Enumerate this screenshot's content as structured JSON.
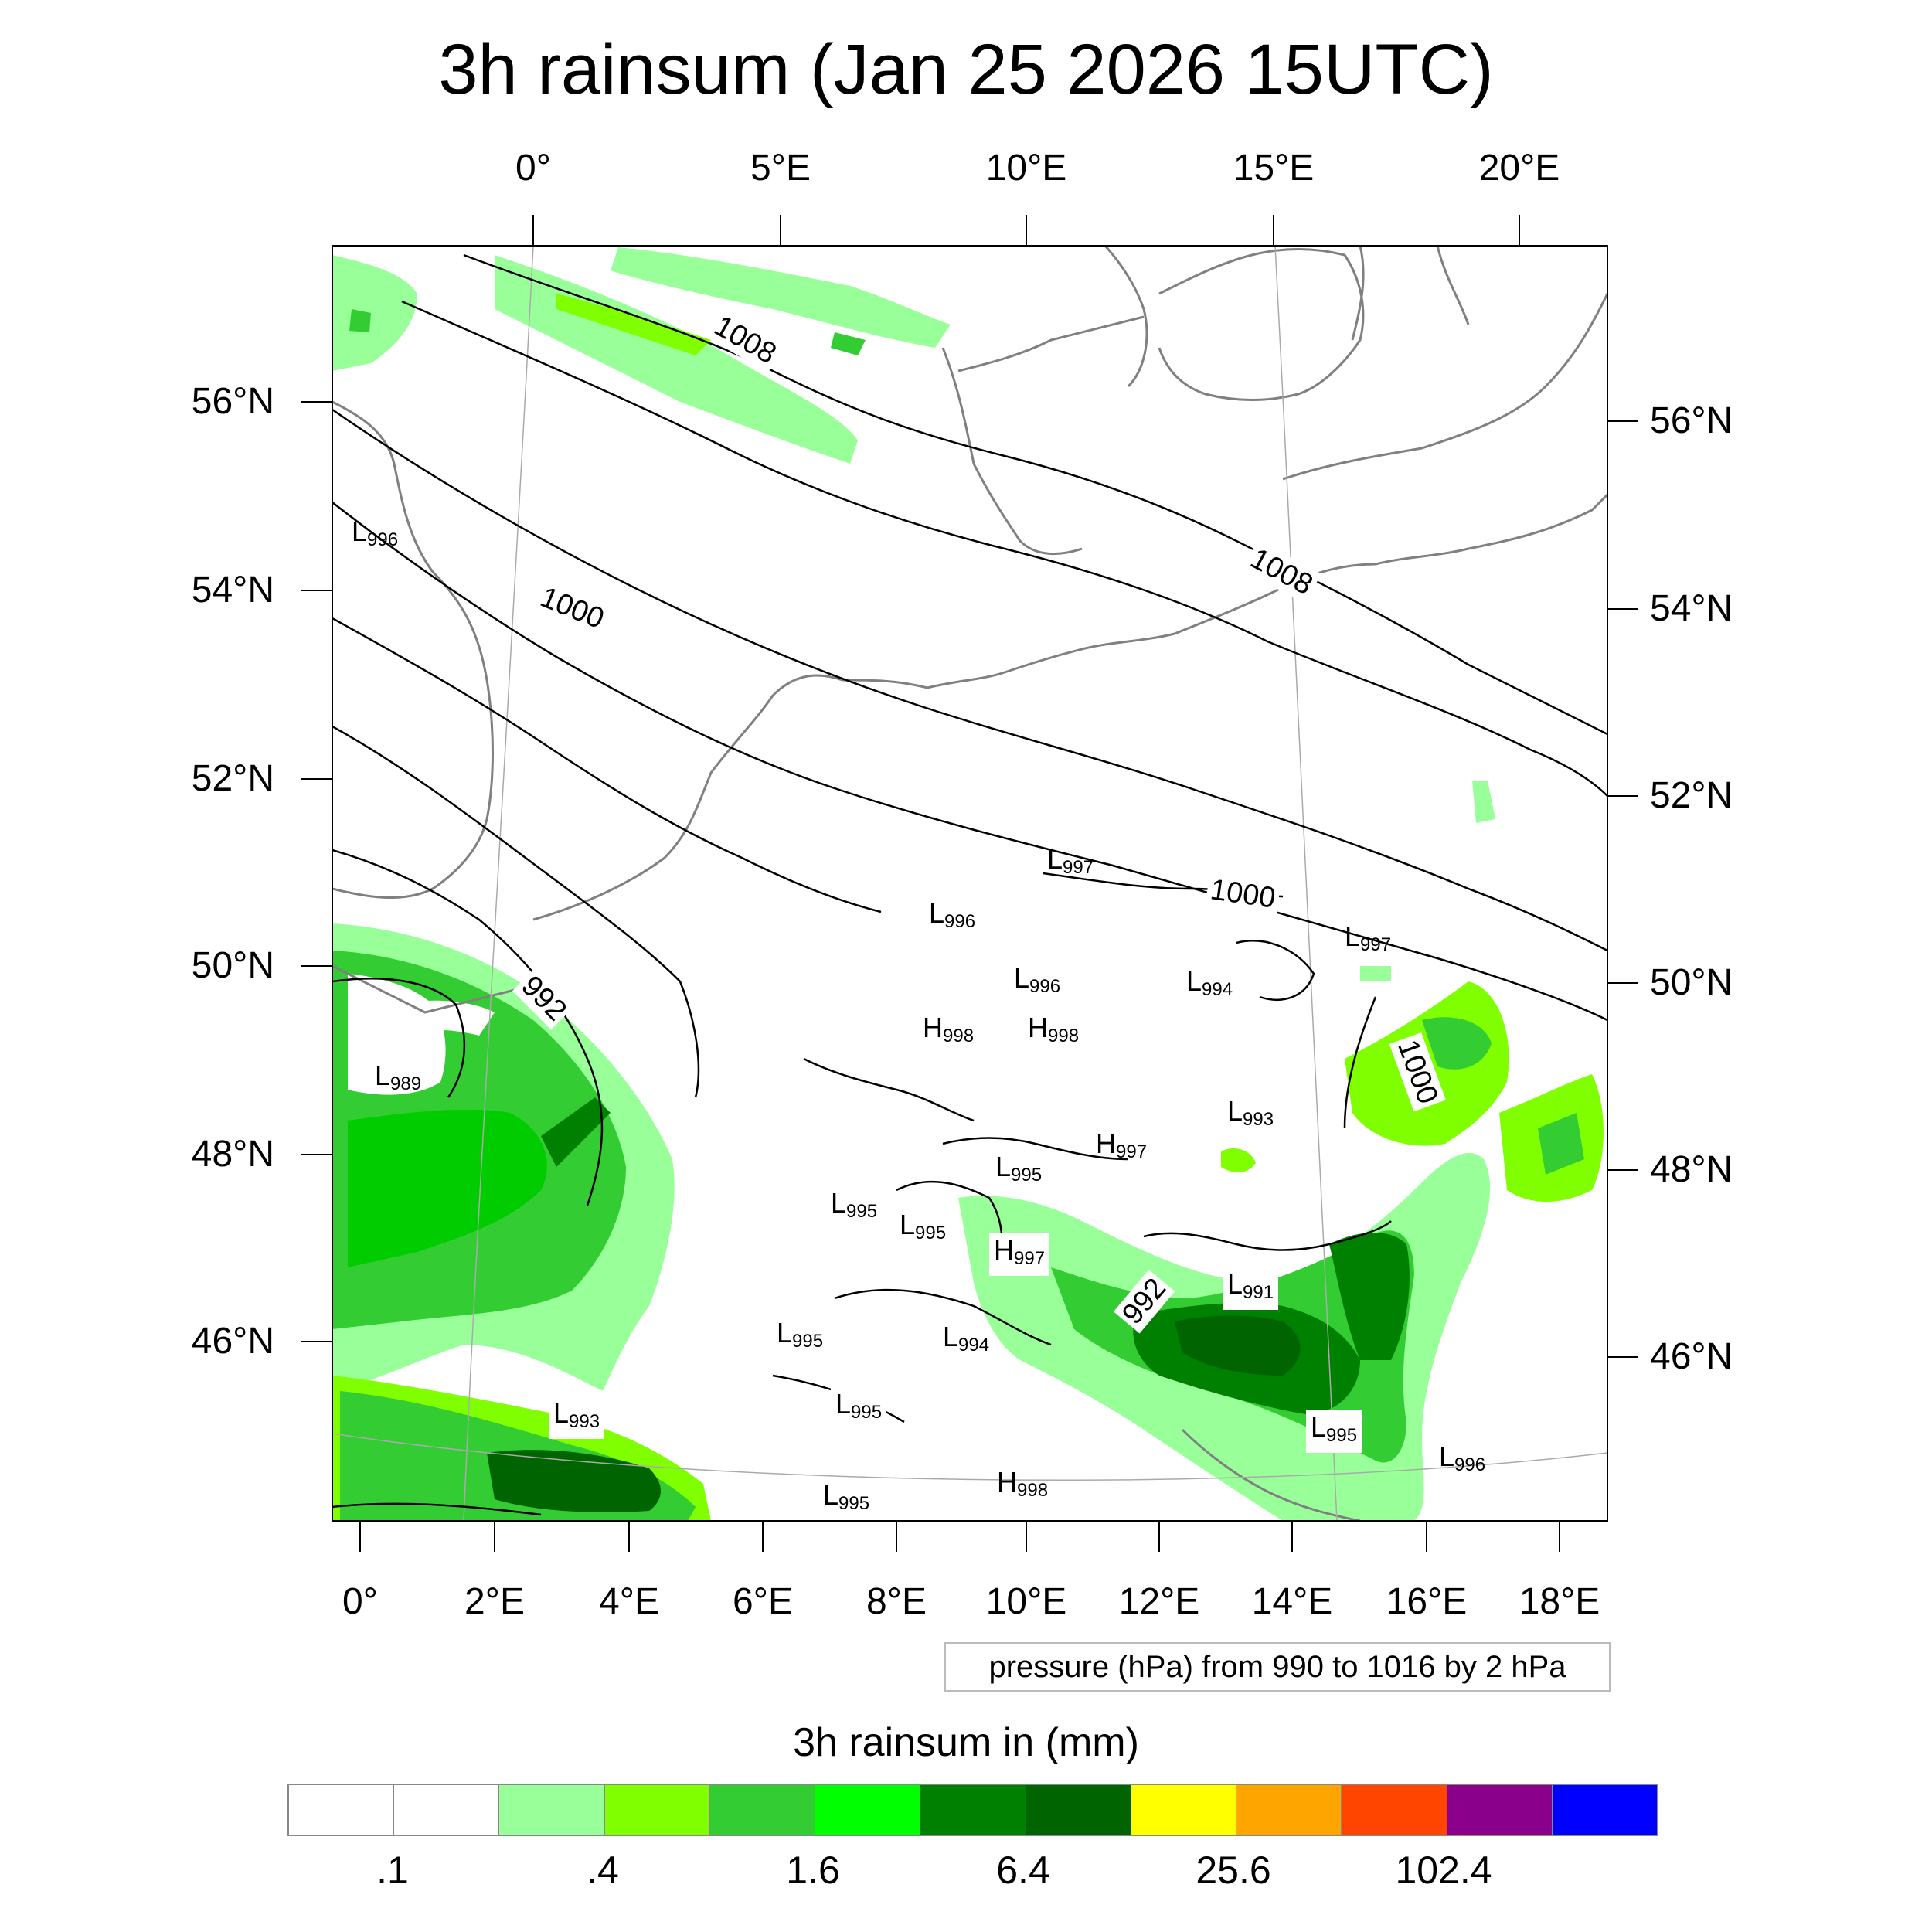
{
  "title": "3h rainsum (Jan 25 2026 15UTC)",
  "top_lon_labels": [
    "0°",
    "5°E",
    "10°E",
    "15°E",
    "20°E"
  ],
  "bottom_lon_labels": [
    "0°",
    "2°E",
    "4°E",
    "6°E",
    "8°E",
    "10°E",
    "12°E",
    "14°E",
    "16°E",
    "18°E"
  ],
  "left_lat_labels": [
    "56°N",
    "54°N",
    "52°N",
    "50°N",
    "48°N",
    "46°N"
  ],
  "right_lat_labels": [
    "56°N",
    "54°N",
    "52°N",
    "50°N",
    "48°N",
    "46°N"
  ],
  "contour_labels": [
    "1008",
    "1000",
    "1008",
    "992",
    "1000",
    "1000",
    "992"
  ],
  "pressure_systems": [
    {
      "type": "L",
      "value": "996"
    },
    {
      "type": "L",
      "value": "997"
    },
    {
      "type": "L",
      "value": "996"
    },
    {
      "type": "L",
      "value": "996"
    },
    {
      "type": "L",
      "value": "994"
    },
    {
      "type": "L",
      "value": "997"
    },
    {
      "type": "H",
      "value": "998"
    },
    {
      "type": "H",
      "value": "998"
    },
    {
      "type": "L",
      "value": "989"
    },
    {
      "type": "L",
      "value": "993"
    },
    {
      "type": "H",
      "value": "997"
    },
    {
      "type": "L",
      "value": "995"
    },
    {
      "type": "L",
      "value": "995"
    },
    {
      "type": "L",
      "value": "995"
    },
    {
      "type": "H",
      "value": "997"
    },
    {
      "type": "L",
      "value": "991"
    },
    {
      "type": "L",
      "value": "995"
    },
    {
      "type": "L",
      "value": "994"
    },
    {
      "type": "L",
      "value": "995"
    },
    {
      "type": "L",
      "value": "993"
    },
    {
      "type": "L",
      "value": "995"
    },
    {
      "type": "L",
      "value": "996"
    },
    {
      "type": "H",
      "value": "998"
    },
    {
      "type": "L",
      "value": "995"
    }
  ],
  "info_box": "pressure (hPa) from 990 to 1016 by 2 hPa",
  "colorbar": {
    "title": "3h rainsum in (mm)",
    "colors": [
      "#ffffff",
      "#ffffff",
      "#99ff99",
      "#80ff00",
      "#33cc33",
      "#00ff00",
      "#008000",
      "#006400",
      "#ffff00",
      "#ffa500",
      "#ff4500",
      "#8b008b",
      "#0000ff"
    ],
    "labels": [
      ".1",
      ".4",
      "1.6",
      "6.4",
      "25.6",
      "102.4"
    ]
  }
}
